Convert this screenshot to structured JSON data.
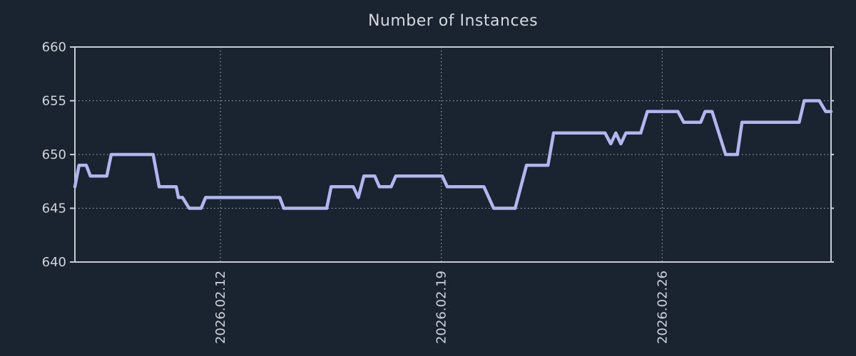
{
  "chart_data": {
    "type": "line",
    "title": "Number of Instances",
    "x_axis": {
      "unit": "days since 2026-02-07 00:00",
      "range": [
        0.39,
        24.35
      ],
      "ticks": [
        {
          "t": 5,
          "label": "2026.02.12"
        },
        {
          "t": 12,
          "label": "2026.02.19"
        },
        {
          "t": 19,
          "label": "2026.02.26"
        }
      ],
      "grid": true
    },
    "y_axis": {
      "range": [
        640,
        660
      ],
      "ticks": [
        640,
        645,
        650,
        655,
        660
      ],
      "grid_at": [
        645,
        650,
        655
      ]
    },
    "series": [
      {
        "name": "instances",
        "color": "#b1b6ef",
        "points": [
          [
            0.39,
            647
          ],
          [
            0.52,
            649
          ],
          [
            0.75,
            649
          ],
          [
            0.88,
            648
          ],
          [
            1.4,
            648
          ],
          [
            1.54,
            650
          ],
          [
            2.87,
            650
          ],
          [
            3.06,
            647
          ],
          [
            3.6,
            647
          ],
          [
            3.67,
            646
          ],
          [
            3.8,
            646
          ],
          [
            4.01,
            645
          ],
          [
            4.39,
            645
          ],
          [
            4.53,
            646
          ],
          [
            6.88,
            646
          ],
          [
            7.01,
            645
          ],
          [
            8.37,
            645
          ],
          [
            8.51,
            647
          ],
          [
            9.21,
            647
          ],
          [
            9.37,
            646
          ],
          [
            9.55,
            648
          ],
          [
            9.89,
            648
          ],
          [
            10.04,
            647
          ],
          [
            10.41,
            647
          ],
          [
            10.56,
            648
          ],
          [
            12.03,
            648
          ],
          [
            12.19,
            647
          ],
          [
            13.35,
            647
          ],
          [
            13.66,
            645
          ],
          [
            14.34,
            645
          ],
          [
            14.7,
            649
          ],
          [
            15.38,
            649
          ],
          [
            15.56,
            652
          ],
          [
            17.19,
            652
          ],
          [
            17.37,
            651
          ],
          [
            17.53,
            652
          ],
          [
            17.69,
            651
          ],
          [
            17.85,
            652
          ],
          [
            18.32,
            652
          ],
          [
            18.53,
            654
          ],
          [
            19.5,
            654
          ],
          [
            19.68,
            653
          ],
          [
            20.22,
            653
          ],
          [
            20.36,
            654
          ],
          [
            20.58,
            654
          ],
          [
            21.01,
            650
          ],
          [
            21.38,
            650
          ],
          [
            21.53,
            653
          ],
          [
            23.34,
            653
          ],
          [
            23.5,
            655
          ],
          [
            23.98,
            655
          ],
          [
            24.18,
            654
          ],
          [
            24.35,
            654
          ]
        ]
      }
    ],
    "colors": {
      "background": "#1a2330",
      "border": "#c8ccd3",
      "grid": "#c8ccd3",
      "tick_text": "#cfd4da",
      "title_text": "#d5d9de",
      "line": "#b1b6ef"
    }
  }
}
